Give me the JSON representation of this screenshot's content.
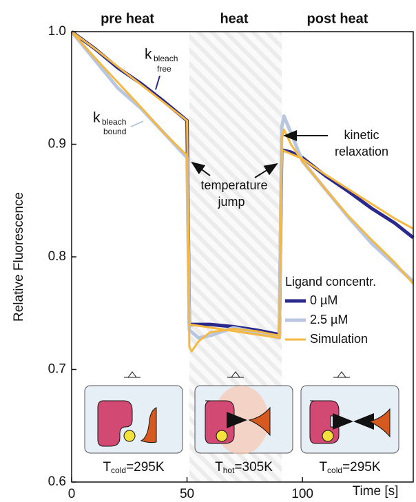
{
  "chart_data": {
    "type": "line",
    "sections": [
      "pre heat",
      "heat",
      "post heat"
    ],
    "x_label": "Time [s]",
    "y_label": "Relative Fluorescence",
    "xlim": [
      0,
      148
    ],
    "xticks": [
      0,
      50,
      100
    ],
    "ylim": [
      0.6,
      1.0
    ],
    "yticks": [
      0.6,
      0.7,
      0.8,
      0.9,
      {
        "value": 1,
        "label": "1.0"
      }
    ],
    "heat_region": [
      51,
      91
    ],
    "legend_title": "Ligand concentr.",
    "annotations": {
      "k_free": {
        "k": "k",
        "sub": "bleach",
        "sub2": "free"
      },
      "k_bound": {
        "k": "k",
        "sub": "bleach",
        "sub2": "bound"
      },
      "temperature_jump": [
        "temperature",
        "jump"
      ],
      "kinetic_relaxation": [
        "kinetic",
        "relaxation"
      ]
    },
    "insets": [
      {
        "T": "T",
        "sub": "cold",
        "rest": "=295K"
      },
      {
        "T": "T",
        "sub": "hot",
        "rest": "=305K"
      },
      {
        "T": "T",
        "sub": "cold",
        "rest": "=295K"
      }
    ],
    "series": [
      {
        "name": "0 µM",
        "color": "#2b2a8c",
        "width": 5,
        "x": [
          0,
          10,
          20,
          30,
          40,
          50,
          51,
          60,
          70,
          80,
          90,
          91,
          95,
          100,
          110,
          120,
          130,
          140,
          148
        ],
        "values": [
          1.0,
          0.985,
          0.968,
          0.954,
          0.938,
          0.921,
          0.74,
          0.74,
          0.738,
          0.735,
          0.731,
          0.895,
          0.893,
          0.888,
          0.872,
          0.858,
          0.843,
          0.83,
          0.817
        ]
      },
      {
        "name": "2.5 µM",
        "color": "#b8c6e0",
        "width": 5,
        "x": [
          0,
          10,
          20,
          30,
          40,
          50,
          51,
          55,
          60,
          70,
          80,
          90,
          91,
          92,
          95,
          100,
          110,
          120,
          130,
          140,
          148
        ],
        "values": [
          1.0,
          0.975,
          0.95,
          0.932,
          0.91,
          0.888,
          0.735,
          0.728,
          0.73,
          0.737,
          0.733,
          0.728,
          0.915,
          0.925,
          0.91,
          0.885,
          0.86,
          0.835,
          0.812,
          0.793,
          0.778
        ]
      },
      {
        "name": "Simulation",
        "color": "#f5b942",
        "width": 3,
        "x": [
          0,
          10,
          20,
          30,
          40,
          50,
          51,
          90,
          91,
          100,
          110,
          120,
          130,
          140,
          148
        ],
        "values": [
          1.0,
          0.985,
          0.969,
          0.953,
          0.937,
          0.921,
          0.74,
          0.728,
          0.895,
          0.887,
          0.873,
          0.86,
          0.847,
          0.834,
          0.825
        ]
      },
      {
        "color": "#f5b942",
        "width": 3,
        "x": [
          0,
          10,
          20,
          30,
          40,
          50,
          51,
          52,
          55,
          60,
          70,
          80,
          90,
          91,
          92,
          95,
          100,
          110,
          120,
          130,
          140,
          148
        ],
        "values": [
          1.0,
          0.977,
          0.955,
          0.933,
          0.91,
          0.89,
          0.72,
          0.716,
          0.725,
          0.733,
          0.736,
          0.734,
          0.73,
          0.905,
          0.913,
          0.9,
          0.885,
          0.86,
          0.836,
          0.815,
          0.795,
          0.776
        ]
      }
    ]
  }
}
